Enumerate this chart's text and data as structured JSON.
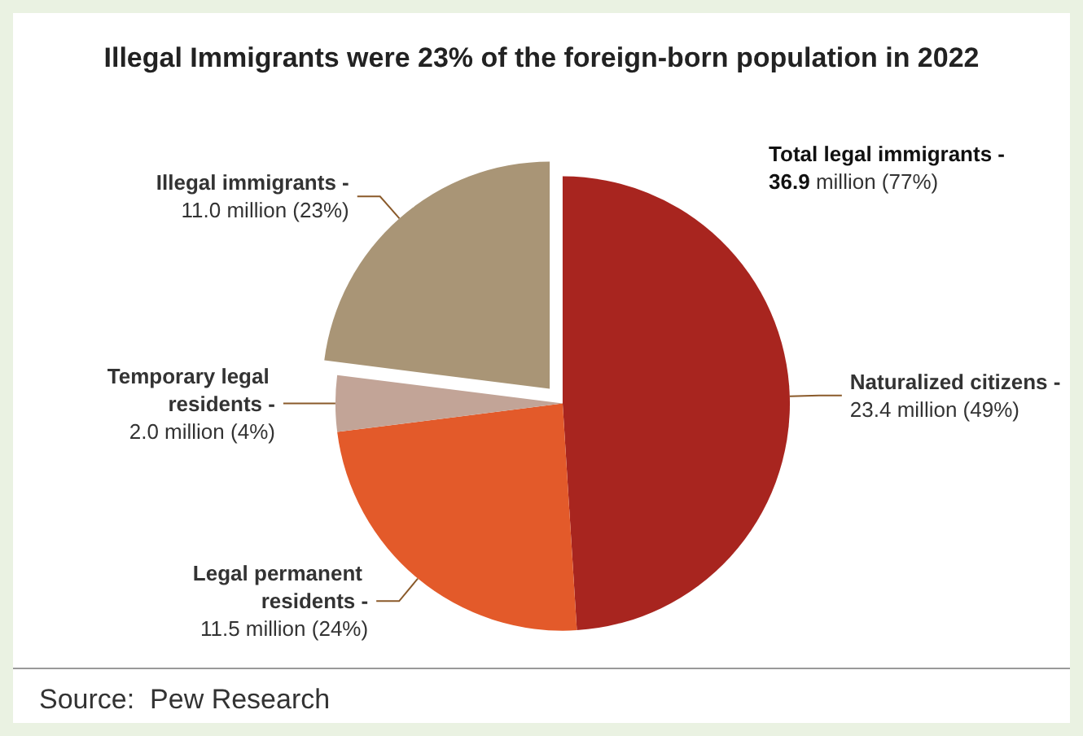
{
  "chart_data": {
    "type": "pie",
    "title": "Illegal Immigrants were 23% of the foreign-born population in 2022",
    "categories": [
      "Naturalized citizens -",
      "Legal permanent residents -",
      "Temporary legal residents -",
      "Illegal immigrants -"
    ],
    "values": [
      49,
      24,
      4,
      23
    ],
    "value_labels": [
      "23.4 million (49%)",
      "11.5 million (24%)",
      "2.0 million (4%)",
      "11.0 million (23%)"
    ],
    "colors": [
      "#a8251f",
      "#e35a2a",
      "#c2a497",
      "#a99576"
    ],
    "annotations": [
      "Total legal immigrants - 36.9 million (77%)",
      "Source:  Pew Research"
    ]
  }
}
